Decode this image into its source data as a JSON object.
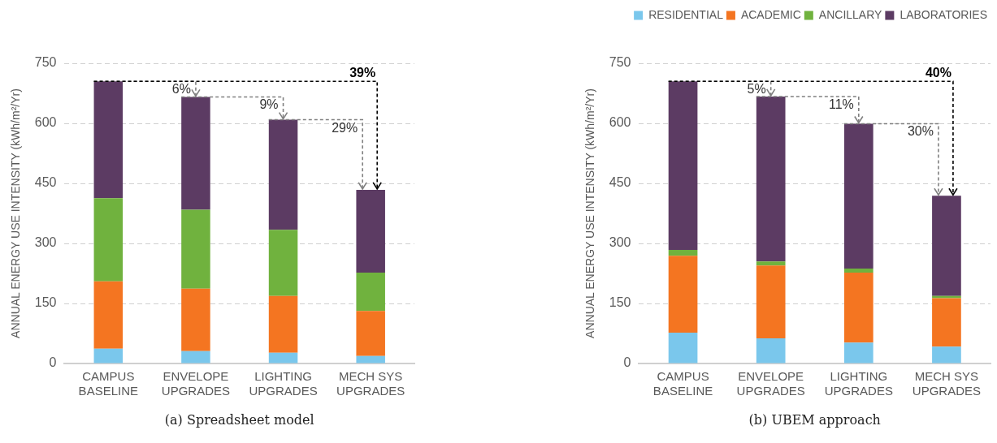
{
  "chart_data": [
    {
      "type": "bar",
      "title": "(a) Spreadsheet model",
      "ylabel": "ANNUAL ENERGY USE INTENSITY (kWh/m²/Yr)",
      "categories": [
        "CAMPUS\nBASELINE",
        "ENVELOPE\nUPGRADES",
        "LIGHTING\nUPGRADES",
        "MECH SYS\nUPGRADES"
      ],
      "stacked": true,
      "ylim": [
        0,
        750
      ],
      "yticks": [
        0,
        150,
        300,
        450,
        600,
        750
      ],
      "grid": "y",
      "legend": false,
      "series": [
        {
          "color": "#7ac7ec",
          "values": [
            37,
            31,
            27,
            19
          ]
        },
        {
          "color": "#f47521",
          "values": [
            168,
            156,
            142,
            112
          ]
        },
        {
          "color": "#70b23e",
          "values": [
            208,
            197,
            165,
            96
          ]
        },
        {
          "color": "#5c3b63",
          "values": [
            292,
            282,
            275,
            207
          ]
        }
      ],
      "annotations": [
        {
          "text": "6%",
          "x": "ENVELOPE\nUPGRADES",
          "y": 666
        },
        {
          "text": "9%",
          "x": "LIGHTING\nUPGRADES",
          "y": 609
        },
        "29%",
        {
          "text": "39%",
          "x": "MECH SYS\nUPGRADES",
          "y": 434
        }
      ]
    },
    {
      "type": "bar",
      "title": "(b) UBEM approach",
      "ylabel": "ANNUAL ENERGY USE INTENSITY (kWh/m²/Yr)",
      "categories": [
        "CAMPUS\nBASELINE",
        "ENVELOPE\nUPGRADES",
        "LIGHTING\nUPGRADES",
        "MECH SYS\nUPGRADES"
      ],
      "stacked": true,
      "ylim": [
        0,
        750
      ],
      "yticks": [
        0,
        150,
        300,
        450,
        600,
        750
      ],
      "grid": "y",
      "legend": "top right",
      "series": [
        {
          "name": "RESIDENTIAL",
          "color": "#7ac7ec",
          "values": [
            77,
            63,
            52,
            42
          ]
        },
        {
          "name": "ACADEMIC",
          "color": "#f47521",
          "values": [
            192,
            182,
            175,
            121
          ]
        },
        {
          "name": "ANCILLARY",
          "color": "#70b23e",
          "values": [
            15,
            10,
            10,
            6
          ]
        },
        {
          "name": "LABORATORIES",
          "color": "#5c3b63",
          "values": [
            421,
            412,
            362,
            250
          ]
        }
      ],
      "annotations": [
        {
          "text": "5%",
          "x": "ENVELOPE\nUPGRADES",
          "y": 667
        },
        {
          "text": "11%",
          "x": "LIGHTING\nUPGRADES",
          "y": 599
        },
        "30%",
        {
          "text": "40%",
          "x": "MECH SYS\nUPGRADES",
          "y": 419
        }
      ]
    }
  ]
}
